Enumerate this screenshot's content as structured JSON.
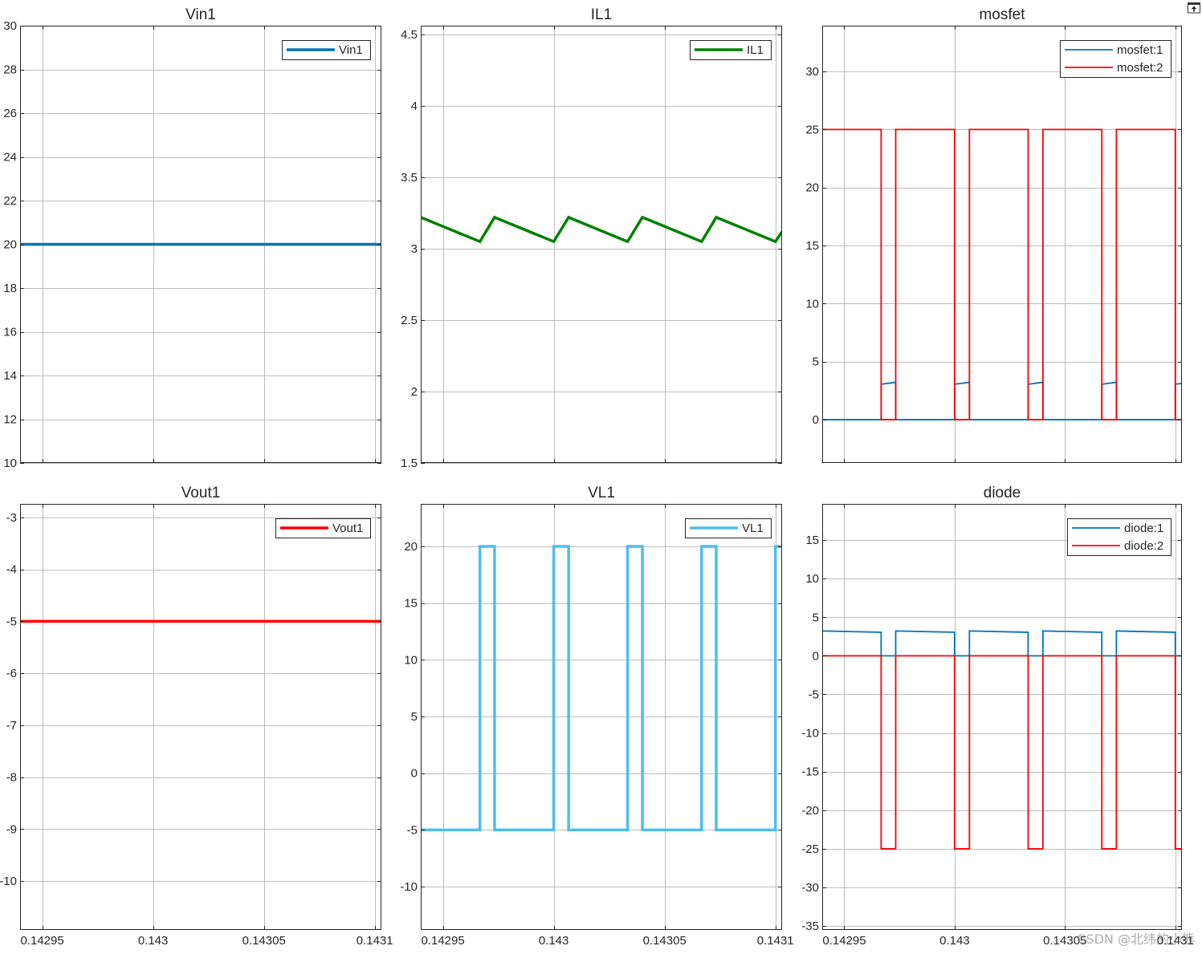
{
  "figure": {
    "undock_icon": "undock-icon",
    "watermark": "CSDN @北纬的小熊"
  },
  "chart_data": [
    {
      "type": "line",
      "title": "Vin1",
      "xlim": [
        0.14294,
        0.143103
      ],
      "ylim": [
        10,
        30
      ],
      "xticks": [
        0.14295,
        0.143,
        0.14305,
        0.1431
      ],
      "yticks": [
        10,
        12,
        14,
        16,
        18,
        20,
        22,
        24,
        26,
        28,
        30
      ],
      "xtick_labels_visible": false,
      "grid": true,
      "legend": "top-right",
      "series": [
        {
          "name": "Vin1",
          "color": "#0072BD",
          "x": [
            0.14294,
            0.143103
          ],
          "y": [
            20,
            20
          ]
        }
      ]
    },
    {
      "type": "line",
      "title": "IL1",
      "xlim": [
        0.14294,
        0.143103
      ],
      "ylim": [
        1.5,
        4.562
      ],
      "xticks": [
        0.14295,
        0.143,
        0.14305,
        0.1431
      ],
      "yticks": [
        1.5,
        2,
        2.5,
        3,
        3.5,
        4,
        4.5
      ],
      "xtick_labels_visible": false,
      "grid": true,
      "legend": "top-right",
      "series": [
        {
          "name": "IL1",
          "color": "#008000",
          "x": [
            0.14294,
            0.1429667,
            0.1429733,
            0.143,
            0.1430067,
            0.1430333,
            0.14304,
            0.1430667,
            0.1430733,
            0.1431,
            0.143103
          ],
          "y": [
            3.22,
            3.05,
            3.22,
            3.05,
            3.22,
            3.05,
            3.22,
            3.05,
            3.22,
            3.05,
            3.12
          ]
        }
      ]
    },
    {
      "type": "line",
      "title": "mosfet",
      "xlim": [
        0.14294,
        0.143103
      ],
      "ylim": [
        -3.73,
        33.94
      ],
      "xticks": [
        0.14295,
        0.143,
        0.14305,
        0.1431
      ],
      "yticks": [
        0,
        5,
        10,
        15,
        20,
        25,
        30
      ],
      "xtick_labels_visible": false,
      "grid": true,
      "legend": "top-right",
      "series": [
        {
          "name": "mosfet:1",
          "color": "#0072BD",
          "x": [
            0.14294,
            0.1429667,
            0.1429667,
            0.1429733,
            0.1429733,
            0.143,
            0.143,
            0.1430067,
            0.1430067,
            0.1430333,
            0.1430333,
            0.14304,
            0.14304,
            0.1430667,
            0.1430667,
            0.1430733,
            0.1430733,
            0.1431,
            0.1431,
            0.143103
          ],
          "y": [
            0,
            0,
            3.05,
            3.22,
            0,
            0,
            3.05,
            3.22,
            0,
            0,
            3.05,
            3.22,
            0,
            0,
            3.05,
            3.22,
            0,
            0,
            3.05,
            3.12
          ]
        },
        {
          "name": "mosfet:2",
          "color": "#FF0000",
          "x": [
            0.14294,
            0.1429667,
            0.1429667,
            0.1429733,
            0.1429733,
            0.143,
            0.143,
            0.1430067,
            0.1430067,
            0.1430333,
            0.1430333,
            0.14304,
            0.14304,
            0.1430667,
            0.1430667,
            0.1430733,
            0.1430733,
            0.1431,
            0.1431,
            0.143103
          ],
          "y": [
            25,
            25,
            0,
            0,
            25,
            25,
            0,
            0,
            25,
            25,
            0,
            0,
            25,
            25,
            0,
            0,
            25,
            25,
            0,
            0
          ]
        }
      ]
    },
    {
      "type": "line",
      "title": "Vout1",
      "xlim": [
        0.14294,
        0.143103
      ],
      "ylim": [
        -10.94,
        -2.74
      ],
      "xticks": [
        0.14295,
        0.143,
        0.14305,
        0.1431
      ],
      "yticks": [
        -10,
        -9,
        -8,
        -7,
        -6,
        -5,
        -4,
        -3
      ],
      "xtick_labels_visible": true,
      "grid": true,
      "legend": "top-right",
      "series": [
        {
          "name": "Vout1",
          "color": "#FF0000",
          "x": [
            0.14294,
            0.143103
          ],
          "y": [
            -5,
            -5
          ]
        }
      ]
    },
    {
      "type": "line",
      "title": "VL1",
      "xlim": [
        0.14294,
        0.143103
      ],
      "ylim": [
        -13.82,
        23.75
      ],
      "xticks": [
        0.14295,
        0.143,
        0.14305,
        0.1431
      ],
      "yticks": [
        -10,
        -5,
        0,
        5,
        10,
        15,
        20
      ],
      "xtick_labels_visible": true,
      "grid": true,
      "legend": "top-right",
      "series": [
        {
          "name": "VL1",
          "color": "#4DBEEE",
          "x": [
            0.14294,
            0.1429667,
            0.1429667,
            0.1429733,
            0.1429733,
            0.143,
            0.143,
            0.1430067,
            0.1430067,
            0.1430333,
            0.1430333,
            0.14304,
            0.14304,
            0.1430667,
            0.1430667,
            0.1430733,
            0.1430733,
            0.1431,
            0.1431,
            0.143103
          ],
          "y": [
            -5,
            -5,
            20,
            20,
            -5,
            -5,
            20,
            20,
            -5,
            -5,
            20,
            20,
            -5,
            -5,
            20,
            20,
            -5,
            -5,
            20,
            20
          ]
        }
      ]
    },
    {
      "type": "line",
      "title": "diode",
      "xlim": [
        0.14294,
        0.143103
      ],
      "ylim": [
        -35.5,
        19.68
      ],
      "xticks": [
        0.14295,
        0.143,
        0.14305,
        0.1431
      ],
      "yticks": [
        -35,
        -30,
        -25,
        -20,
        -15,
        -10,
        -5,
        0,
        5,
        10,
        15
      ],
      "xtick_labels_visible": true,
      "grid": true,
      "legend": "top-right",
      "series": [
        {
          "name": "diode:1",
          "color": "#0072BD",
          "x": [
            0.14294,
            0.1429667,
            0.1429667,
            0.1429733,
            0.1429733,
            0.143,
            0.143,
            0.1430067,
            0.1430067,
            0.1430333,
            0.1430333,
            0.14304,
            0.14304,
            0.1430667,
            0.1430667,
            0.1430733,
            0.1430733,
            0.1431,
            0.1431,
            0.143103
          ],
          "y": [
            3.22,
            3.05,
            0,
            0,
            3.22,
            3.05,
            0,
            0,
            3.22,
            3.05,
            0,
            0,
            3.22,
            3.05,
            0,
            0,
            3.22,
            3.05,
            0,
            0
          ]
        },
        {
          "name": "diode:2",
          "color": "#FF0000",
          "x": [
            0.14294,
            0.1429667,
            0.1429667,
            0.1429733,
            0.1429733,
            0.143,
            0.143,
            0.1430067,
            0.1430067,
            0.1430333,
            0.1430333,
            0.14304,
            0.14304,
            0.1430667,
            0.1430667,
            0.1430733,
            0.1430733,
            0.1431,
            0.1431,
            0.143103
          ],
          "y": [
            0,
            0,
            -25,
            -25,
            0,
            0,
            -25,
            -25,
            0,
            0,
            -25,
            -25,
            0,
            0,
            -25,
            -25,
            0,
            0,
            -25,
            -25
          ]
        }
      ]
    }
  ]
}
